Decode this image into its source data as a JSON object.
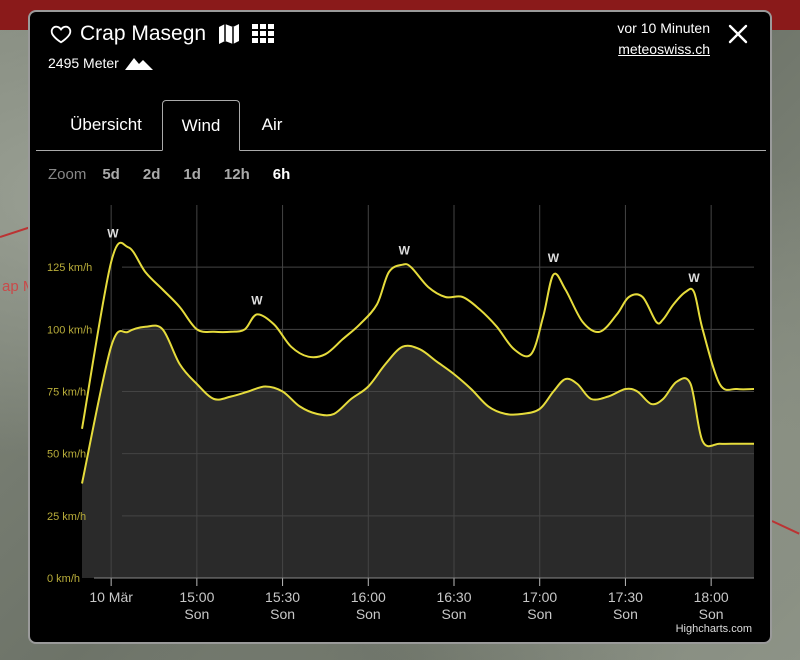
{
  "header": {
    "title": "Crap Masegn",
    "altitude": "2495 Meter",
    "time_ago": "vor 10 Minuten",
    "source": "meteoswiss.ch"
  },
  "tabs": [
    {
      "label": "Übersicht",
      "active": false
    },
    {
      "label": "Wind",
      "active": true
    },
    {
      "label": "Air",
      "active": false
    }
  ],
  "zoom": {
    "label": "Zoom",
    "options": [
      {
        "label": "5d",
        "selected": false
      },
      {
        "label": "2d",
        "selected": false
      },
      {
        "label": "1d",
        "selected": false
      },
      {
        "label": "12h",
        "selected": false
      },
      {
        "label": "6h",
        "selected": true
      }
    ]
  },
  "background_map_fragment": "ap M",
  "credit": "Highcharts.com",
  "colors": {
    "line": "#e6dc3c",
    "area": "#2a2a2a",
    "grid": "#444444",
    "ytick": "#b9ad3a",
    "accent_bar": "#8a1a1a"
  },
  "chart_data": {
    "type": "area",
    "x_unit": "minutes",
    "xlim": [
      -10,
      375
    ],
    "ylim": [
      0,
      150
    ],
    "yticks": [
      {
        "value": 0,
        "label": "0 km/h"
      },
      {
        "value": 25,
        "label": "25 km/h"
      },
      {
        "value": 50,
        "label": "50 km/h"
      },
      {
        "value": 75,
        "label": "75 km/h"
      },
      {
        "value": 100,
        "label": "100 km/h"
      },
      {
        "value": 125,
        "label": "125 km/h"
      }
    ],
    "xticks": [
      {
        "value": 0,
        "label": "10 Mär",
        "sublabel": ""
      },
      {
        "value": 50,
        "label": "15:00",
        "sublabel": "Son"
      },
      {
        "value": 100,
        "label": "15:30",
        "sublabel": "Son"
      },
      {
        "value": 150,
        "label": "16:00",
        "sublabel": "Son"
      },
      {
        "value": 200,
        "label": "16:30",
        "sublabel": "Son"
      },
      {
        "value": 250,
        "label": "17:00",
        "sublabel": "Son"
      },
      {
        "value": 300,
        "label": "17:30",
        "sublabel": "Son"
      },
      {
        "value": 350,
        "label": "18:00",
        "sublabel": "Son"
      }
    ],
    "series": [
      {
        "name": "",
        "fill": true,
        "x": [
          -17,
          0,
          10,
          20,
          30,
          40,
          50,
          60,
          70,
          80,
          90,
          100,
          110,
          120,
          130,
          140,
          150,
          160,
          170,
          180,
          190,
          200,
          210,
          220,
          230,
          240,
          250,
          258,
          265,
          272,
          280,
          290,
          300,
          307,
          315,
          322,
          330,
          338,
          345,
          355,
          365,
          375
        ],
        "y": [
          38,
          93,
          99,
          101,
          100,
          86,
          78,
          72,
          73,
          75,
          77,
          75,
          69,
          66,
          66,
          72,
          77,
          86,
          93,
          92,
          87,
          82,
          76,
          69,
          66,
          66,
          68,
          75,
          80,
          78,
          72,
          73,
          76,
          75,
          70,
          72,
          79,
          78,
          55,
          54,
          54,
          54
        ]
      },
      {
        "name": "",
        "fill": false,
        "x": [
          -17,
          0,
          10,
          20,
          30,
          40,
          50,
          60,
          70,
          78,
          85,
          95,
          105,
          115,
          125,
          135,
          145,
          155,
          162,
          170,
          175,
          185,
          195,
          205,
          215,
          225,
          235,
          245,
          252,
          258,
          265,
          275,
          285,
          295,
          302,
          310,
          318,
          322,
          328,
          335,
          340,
          345,
          355,
          365,
          375
        ],
        "y": [
          60,
          127,
          133,
          123,
          116,
          109,
          100,
          99,
          99,
          100,
          106,
          102,
          93,
          89,
          90,
          96,
          102,
          110,
          123,
          126,
          125,
          117,
          113,
          113,
          108,
          101,
          92,
          90,
          105,
          122,
          116,
          103,
          99,
          106,
          113,
          113,
          103,
          104,
          110,
          115,
          115,
          100,
          78,
          76,
          76
        ]
      }
    ],
    "annotations": [
      {
        "x": 1,
        "y": 133,
        "label": "W"
      },
      {
        "x": 85,
        "y": 106,
        "label": "W"
      },
      {
        "x": 171,
        "y": 126,
        "label": "W"
      },
      {
        "x": 258,
        "y": 123,
        "label": "W"
      },
      {
        "x": 340,
        "y": 115,
        "label": "W"
      }
    ],
    "grid": true,
    "legend": "none"
  }
}
